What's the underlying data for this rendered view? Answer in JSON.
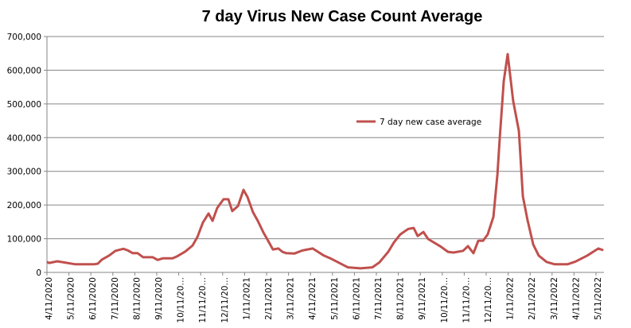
{
  "chart_data": {
    "type": "line",
    "title": "7 day Virus New Case Count Average",
    "xlabel": "",
    "ylabel": "",
    "ylim": [
      0,
      700000
    ],
    "yticks": [
      0,
      100000,
      200000,
      300000,
      400000,
      500000,
      600000,
      700000
    ],
    "ytick_labels": [
      "0",
      "100,000",
      "200,000",
      "300,000",
      "400,000",
      "500,000",
      "600,000",
      "700,000"
    ],
    "x_unit": "months since 4/11/2020",
    "xlim": [
      0,
      25.36
    ],
    "xtick_labels": [
      "4/11/2020",
      "5/11/2020",
      "6/11/2020",
      "7/11/2020",
      "8/11/2020",
      "9/11/2020",
      "10/11/20…",
      "11/11/20…",
      "12/11/20…",
      "1/11/2021",
      "2/11/2021",
      "3/11/2021",
      "4/11/2021",
      "5/11/2021",
      "6/11/2021",
      "7/11/2021",
      "8/11/2021",
      "9/11/2021",
      "10/11/20…",
      "11/11/20…",
      "12/11/20…",
      "1/11/2022",
      "2/11/2022",
      "3/11/2022",
      "4/11/2022",
      "5/11/2022"
    ],
    "grid": "horizontal",
    "legend_position": "center",
    "color": "#C0504D",
    "series": [
      {
        "name": "7 day new case average",
        "x": [
          0,
          0.1,
          0.47,
          1.3,
          2.14,
          2.32,
          2.5,
          2.83,
          3.12,
          3.48,
          3.66,
          3.91,
          4.13,
          4.38,
          4.82,
          5.04,
          5.29,
          5.72,
          5.94,
          6.3,
          6.63,
          6.85,
          7.1,
          7.36,
          7.54,
          7.75,
          8.04,
          8.26,
          8.44,
          8.7,
          8.95,
          9.13,
          9.38,
          9.6,
          9.86,
          10.07,
          10.29,
          10.54,
          10.72,
          10.9,
          11.27,
          11.63,
          12.1,
          12.61,
          12.9,
          13.7,
          14.28,
          14.82,
          15.14,
          15.54,
          15.8,
          16.09,
          16.45,
          16.7,
          16.88,
          17.14,
          17.36,
          17.9,
          18.26,
          18.51,
          18.95,
          19.17,
          19.42,
          19.64,
          19.86,
          20.07,
          20.33,
          20.51,
          20.62,
          20.8,
          20.98,
          21.23,
          21.49,
          21.67,
          21.88,
          22.14,
          22.39,
          22.75,
          23.12,
          23.7,
          24.06,
          24.6,
          25.11,
          25.33
        ],
        "values": [
          31000,
          28000,
          33000,
          24000,
          24000,
          26000,
          38000,
          50000,
          64000,
          70000,
          66000,
          57000,
          57000,
          45000,
          45000,
          37000,
          42000,
          42000,
          48000,
          62000,
          80000,
          105000,
          148000,
          175000,
          153000,
          191000,
          217000,
          217000,
          182000,
          197000,
          245000,
          224000,
          179000,
          153000,
          118000,
          94000,
          68000,
          71000,
          61000,
          57000,
          56000,
          65000,
          71000,
          50000,
          42000,
          15000,
          12000,
          15000,
          30000,
          61000,
          89000,
          113000,
          129000,
          132000,
          108000,
          120000,
          99000,
          78000,
          61000,
          59000,
          64000,
          78000,
          57000,
          94000,
          94000,
          113000,
          165000,
          290000,
          400000,
          568000,
          648000,
          509000,
          420000,
          226000,
          156000,
          83000,
          50000,
          31000,
          24000,
          24000,
          32000,
          50000,
          71000,
          66000
        ]
      }
    ]
  }
}
